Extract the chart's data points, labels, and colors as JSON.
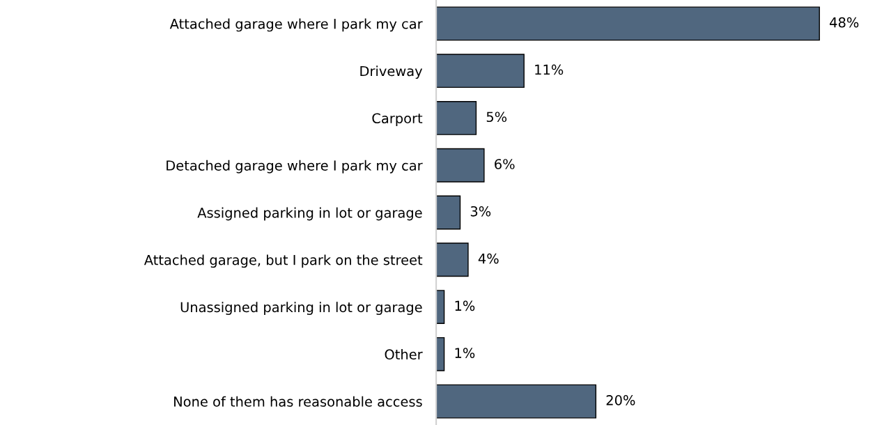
{
  "chart_data": {
    "type": "bar",
    "orientation": "horizontal",
    "categories": [
      "Attached garage where I park my car",
      "Driveway",
      "Carport",
      "Detached garage where I park my car",
      "Assigned parking in lot or garage",
      "Attached garage, but I park on the street",
      "Unassigned parking in lot or garage",
      "Other",
      "None of them has reasonable access"
    ],
    "values": [
      48,
      11,
      5,
      6,
      3,
      4,
      1,
      1,
      20
    ],
    "value_labels": [
      "48%",
      "11%",
      "5%",
      "6%",
      "3%",
      "4%",
      "1%",
      "1%",
      "20%"
    ],
    "color": "#50677f",
    "grid": false,
    "legend": false
  }
}
